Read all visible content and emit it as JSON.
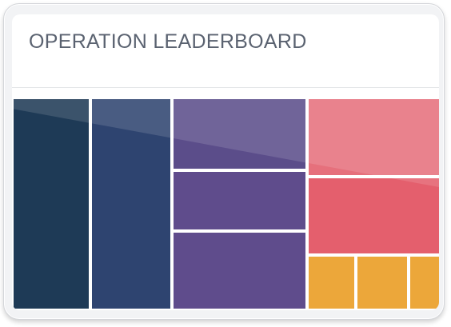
{
  "header": {
    "title": "OPERATION LEADERBOARD"
  },
  "treemap": {
    "tiles": [
      {
        "id": "t1",
        "color": "#1e3a56",
        "label": ""
      },
      {
        "id": "t2",
        "color": "#2e4470",
        "label": ""
      },
      {
        "id": "t3",
        "color": "#5b4d8a",
        "label": ""
      },
      {
        "id": "t4",
        "color": "#5f4c8c",
        "label": ""
      },
      {
        "id": "t5",
        "color": "#5f4c8c",
        "label": ""
      },
      {
        "id": "t6",
        "color": "#e6707c",
        "label": ""
      },
      {
        "id": "t7",
        "color": "#e45f6d",
        "label": ""
      },
      {
        "id": "t8",
        "color": "#eca73a",
        "label": ""
      },
      {
        "id": "t9",
        "color": "#eca73a",
        "label": ""
      },
      {
        "id": "t10",
        "color": "#eca73a",
        "label": ""
      }
    ]
  }
}
